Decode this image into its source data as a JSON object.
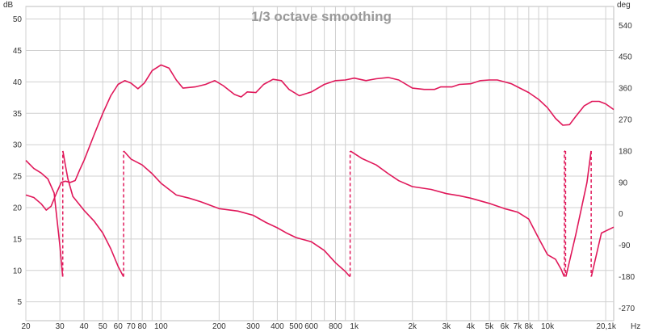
{
  "chart_data": {
    "type": "line",
    "title": "1/3 octave smoothing",
    "xlabel": "Hz",
    "ylabel_left": "dB",
    "ylabel_right": "deg",
    "x_scale": "log",
    "xlim": [
      20,
      22000
    ],
    "ylim_left": [
      2,
      52
    ],
    "ylim_right": [
      -306,
      594
    ],
    "grid": true,
    "x_ticks": [
      {
        "value": 20,
        "label": "20"
      },
      {
        "value": 30,
        "label": "30"
      },
      {
        "value": 40,
        "label": "40"
      },
      {
        "value": 50,
        "label": "50"
      },
      {
        "value": 60,
        "label": "60"
      },
      {
        "value": 70,
        "label": "70"
      },
      {
        "value": 80,
        "label": "80"
      },
      {
        "value": 100,
        "label": "100"
      },
      {
        "value": 200,
        "label": "200"
      },
      {
        "value": 300,
        "label": "300"
      },
      {
        "value": 400,
        "label": "400"
      },
      {
        "value": 500,
        "label": "500"
      },
      {
        "value": 600,
        "label": "600"
      },
      {
        "value": 800,
        "label": "800"
      },
      {
        "value": 1000,
        "label": "1k"
      },
      {
        "value": 2000,
        "label": "2k"
      },
      {
        "value": 3000,
        "label": "3k"
      },
      {
        "value": 4000,
        "label": "4k"
      },
      {
        "value": 5000,
        "label": "5k"
      },
      {
        "value": 6000,
        "label": "6k"
      },
      {
        "value": 7000,
        "label": "7k"
      },
      {
        "value": 8000,
        "label": "8k"
      },
      {
        "value": 10000,
        "label": "10k"
      },
      {
        "value": 20100,
        "label": "20,1k"
      }
    ],
    "y_ticks_left": [
      5,
      10,
      15,
      20,
      25,
      30,
      35,
      40,
      45,
      50
    ],
    "y_ticks_right": [
      -270,
      -180,
      -90,
      0,
      90,
      180,
      270,
      360,
      450,
      540
    ],
    "series": [
      {
        "axis": "left",
        "unit": "dB",
        "color": "#e0185a",
        "points": [
          [
            20,
            22
          ],
          [
            22,
            21.6
          ],
          [
            24,
            20.6
          ],
          [
            25.5,
            19.6
          ],
          [
            27,
            20.2
          ],
          [
            29,
            22.5
          ],
          [
            30.5,
            24
          ],
          [
            32,
            24.2
          ],
          [
            34,
            24
          ],
          [
            36,
            24.3
          ],
          [
            38,
            26
          ],
          [
            40,
            27.5
          ],
          [
            45,
            31.5
          ],
          [
            50,
            35
          ],
          [
            55,
            37.8
          ],
          [
            60,
            39.6
          ],
          [
            65,
            40.2
          ],
          [
            70,
            39.8
          ],
          [
            76,
            38.9
          ],
          [
            82,
            39.8
          ],
          [
            90,
            41.8
          ],
          [
            100,
            42.7
          ],
          [
            110,
            42.2
          ],
          [
            120,
            40.3
          ],
          [
            130,
            39
          ],
          [
            150,
            39.2
          ],
          [
            170,
            39.6
          ],
          [
            190,
            40.2
          ],
          [
            210,
            39.4
          ],
          [
            240,
            38
          ],
          [
            260,
            37.6
          ],
          [
            280,
            38.4
          ],
          [
            310,
            38.3
          ],
          [
            340,
            39.6
          ],
          [
            380,
            40.4
          ],
          [
            420,
            40.2
          ],
          [
            460,
            38.8
          ],
          [
            520,
            37.8
          ],
          [
            600,
            38.4
          ],
          [
            700,
            39.6
          ],
          [
            800,
            40.2
          ],
          [
            900,
            40.3
          ],
          [
            1000,
            40.6
          ],
          [
            1150,
            40.2
          ],
          [
            1300,
            40.5
          ],
          [
            1500,
            40.7
          ],
          [
            1700,
            40.3
          ],
          [
            2000,
            39
          ],
          [
            2300,
            38.8
          ],
          [
            2600,
            38.8
          ],
          [
            2800,
            39.2
          ],
          [
            3200,
            39.2
          ],
          [
            3500,
            39.6
          ],
          [
            4000,
            39.7
          ],
          [
            4500,
            40.2
          ],
          [
            5000,
            40.3
          ],
          [
            5500,
            40.3
          ],
          [
            6000,
            40
          ],
          [
            6500,
            39.7
          ],
          [
            7000,
            39.2
          ],
          [
            8000,
            38.3
          ],
          [
            9000,
            37.2
          ],
          [
            10000,
            35.9
          ],
          [
            11000,
            34.2
          ],
          [
            12000,
            33.1
          ],
          [
            13000,
            33.2
          ],
          [
            14000,
            34.5
          ],
          [
            15500,
            36.2
          ],
          [
            17000,
            36.9
          ],
          [
            18500,
            36.9
          ],
          [
            20000,
            36.5
          ],
          [
            22000,
            35.6
          ]
        ]
      },
      {
        "axis": "right",
        "unit": "deg",
        "color": "#e0185a",
        "points": [
          [
            20,
            153
          ],
          [
            22,
            130
          ],
          [
            24,
            117
          ],
          [
            26,
            100
          ],
          [
            28,
            60
          ],
          [
            30,
            -90
          ],
          [
            31,
            -180
          ],
          [
            31.1,
            180
          ],
          [
            32,
            140
          ],
          [
            33,
            100
          ],
          [
            35,
            50
          ],
          [
            40,
            10
          ],
          [
            45,
            -20
          ],
          [
            50,
            -55
          ],
          [
            55,
            -100
          ],
          [
            60,
            -150
          ],
          [
            64,
            -180
          ],
          [
            64.2,
            180
          ],
          [
            70,
            157
          ],
          [
            80,
            140
          ],
          [
            90,
            115
          ],
          [
            100,
            88
          ],
          [
            120,
            54
          ],
          [
            140,
            45
          ],
          [
            160,
            35
          ],
          [
            200,
            15
          ],
          [
            250,
            8
          ],
          [
            300,
            -4
          ],
          [
            350,
            -25
          ],
          [
            400,
            -40
          ],
          [
            450,
            -56
          ],
          [
            500,
            -68
          ],
          [
            600,
            -80
          ],
          [
            700,
            -105
          ],
          [
            800,
            -140
          ],
          [
            900,
            -165
          ],
          [
            950,
            -180
          ],
          [
            955,
            180
          ],
          [
            1100,
            158
          ],
          [
            1300,
            140
          ],
          [
            1500,
            115
          ],
          [
            1700,
            95
          ],
          [
            2000,
            78
          ],
          [
            2500,
            70
          ],
          [
            3000,
            58
          ],
          [
            3500,
            52
          ],
          [
            4000,
            45
          ],
          [
            5000,
            30
          ],
          [
            6000,
            15
          ],
          [
            7000,
            5
          ],
          [
            8000,
            -15
          ],
          [
            9000,
            -70
          ],
          [
            10000,
            -117
          ],
          [
            11000,
            -130
          ],
          [
            11800,
            -160
          ],
          [
            12200,
            -180
          ],
          [
            12250,
            180
          ],
          [
            12350,
            180
          ],
          [
            12450,
            -180
          ],
          [
            14000,
            -60
          ],
          [
            16000,
            90
          ],
          [
            16800,
            180
          ],
          [
            16850,
            -180
          ],
          [
            19000,
            -55
          ],
          [
            22000,
            -38
          ]
        ]
      }
    ]
  }
}
